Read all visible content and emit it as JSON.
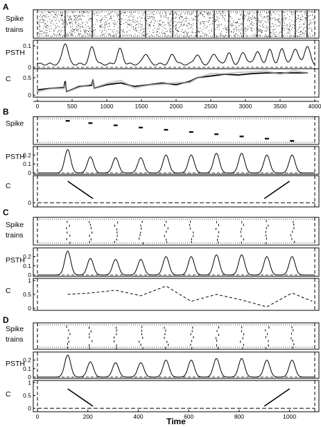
{
  "panels": [
    {
      "letter": "A",
      "rows": [
        {
          "label": [
            "Spike",
            "trains"
          ]
        },
        {
          "label": [
            "PSTH"
          ]
        },
        {
          "label": [
            "C"
          ]
        }
      ]
    },
    {
      "letter": "B",
      "rows": [
        {
          "label": [
            "Spike"
          ]
        },
        {
          "label": [
            "PSTH"
          ]
        },
        {
          "label": [
            "C"
          ]
        }
      ]
    },
    {
      "letter": "C",
      "rows": [
        {
          "label": [
            "Spike",
            "trains"
          ]
        },
        {
          "label": [
            "PSTH"
          ]
        },
        {
          "label": [
            "C"
          ]
        }
      ]
    },
    {
      "letter": "D",
      "rows": [
        {
          "label": [
            "Spike",
            "trains"
          ]
        },
        {
          "label": [
            "PSTH"
          ]
        },
        {
          "label": [
            "C"
          ]
        }
      ]
    }
  ],
  "xlabel": "Time",
  "chart_data": [
    {
      "panel": "A",
      "type": "line",
      "xlim": [
        0,
        4000
      ],
      "x_ticks": [
        0,
        500,
        1000,
        1500,
        2000,
        2500,
        3000,
        3500,
        4000
      ],
      "psth": {
        "yticks": [
          0.1,
          0
        ],
        "ylim": [
          0,
          0.12
        ],
        "peaks": [
          [
            400,
            0.1
          ],
          [
            790,
            0.08
          ],
          [
            1190,
            0.07
          ],
          [
            1560,
            0.05
          ],
          [
            1950,
            0.045
          ],
          [
            2300,
            0.045
          ],
          [
            2550,
            0.05
          ],
          [
            2760,
            0.05
          ],
          [
            2970,
            0.055
          ],
          [
            3170,
            0.06
          ],
          [
            3350,
            0.065
          ],
          [
            3530,
            0.07
          ],
          [
            3720,
            0.075
          ],
          [
            3890,
            0.085
          ]
        ]
      },
      "c": {
        "yticks": [
          0.5,
          0
        ],
        "ylim": [
          0,
          0.7
        ],
        "points": [
          [
            0,
            0.15
          ],
          [
            200,
            0.2
          ],
          [
            380,
            0.22
          ],
          [
            400,
            0.4
          ],
          [
            420,
            0.1
          ],
          [
            600,
            0.25
          ],
          [
            780,
            0.28
          ],
          [
            800,
            0.45
          ],
          [
            820,
            0.2
          ],
          [
            1000,
            0.3
          ],
          [
            1200,
            0.35
          ],
          [
            1400,
            0.25
          ],
          [
            1600,
            0.3
          ],
          [
            1800,
            0.35
          ],
          [
            2000,
            0.3
          ],
          [
            2200,
            0.4
          ],
          [
            2300,
            0.5
          ],
          [
            2500,
            0.55
          ],
          [
            2700,
            0.6
          ],
          [
            2900,
            0.58
          ],
          [
            3100,
            0.62
          ],
          [
            3300,
            0.64
          ],
          [
            3500,
            0.64
          ],
          [
            3700,
            0.64
          ],
          [
            3900,
            0.64
          ]
        ]
      }
    },
    {
      "panel": "B",
      "type": "line",
      "xlim": [
        0,
        1100
      ],
      "psth": {
        "yticks": [
          0.2,
          0.1,
          0
        ],
        "ylim": [
          0,
          0.28
        ],
        "peaks": [
          [
            120,
            0.26
          ],
          [
            210,
            0.18
          ],
          [
            310,
            0.17
          ],
          [
            410,
            0.17
          ],
          [
            510,
            0.2
          ],
          [
            610,
            0.2
          ],
          [
            710,
            0.22
          ],
          [
            810,
            0.22
          ],
          [
            910,
            0.2
          ],
          [
            1010,
            0.2
          ]
        ]
      },
      "c": {
        "yticks": [
          0
        ],
        "ylim": [
          -0.05,
          0.6
        ],
        "points": [
          [
            0,
            0
          ],
          [
            1100,
            0
          ]
        ]
      }
    },
    {
      "panel": "C",
      "type": "line",
      "xlim": [
        0,
        1100
      ],
      "psth": {
        "yticks": [
          0.2,
          0.1,
          0
        ],
        "ylim": [
          0,
          0.28
        ],
        "peaks": [
          [
            120,
            0.26
          ],
          [
            210,
            0.18
          ],
          [
            310,
            0.17
          ],
          [
            410,
            0.17
          ],
          [
            510,
            0.2
          ],
          [
            610,
            0.2
          ],
          [
            710,
            0.22
          ],
          [
            810,
            0.22
          ],
          [
            910,
            0.2
          ],
          [
            1010,
            0.2
          ]
        ]
      },
      "c": {
        "yticks": [
          1,
          0.5,
          0
        ],
        "ylim": [
          0,
          1
        ],
        "points": [
          [
            120,
            0.5
          ],
          [
            210,
            0.55
          ],
          [
            310,
            0.65
          ],
          [
            410,
            0.45
          ],
          [
            510,
            0.8
          ],
          [
            610,
            0.25
          ],
          [
            710,
            0.5
          ],
          [
            810,
            0.3
          ],
          [
            910,
            0.05
          ],
          [
            1010,
            0.55
          ],
          [
            1090,
            0.25
          ]
        ]
      }
    },
    {
      "panel": "D",
      "type": "line",
      "xlim": [
        0,
        1100
      ],
      "x_ticks": [
        0,
        200,
        400,
        600,
        800,
        1000
      ],
      "psth": {
        "yticks": [
          0.2,
          0.1,
          0
        ],
        "ylim": [
          0,
          0.28
        ],
        "peaks": [
          [
            120,
            0.26
          ],
          [
            210,
            0.18
          ],
          [
            310,
            0.17
          ],
          [
            410,
            0.17
          ],
          [
            510,
            0.2
          ],
          [
            610,
            0.2
          ],
          [
            710,
            0.22
          ],
          [
            810,
            0.22
          ],
          [
            910,
            0.2
          ],
          [
            1010,
            0.2
          ]
        ]
      },
      "c": {
        "yticks": [
          1,
          0.5,
          0
        ],
        "ylim": [
          -0.05,
          1
        ],
        "points": [
          [
            0,
            0
          ],
          [
            1100,
            0
          ]
        ]
      }
    }
  ]
}
